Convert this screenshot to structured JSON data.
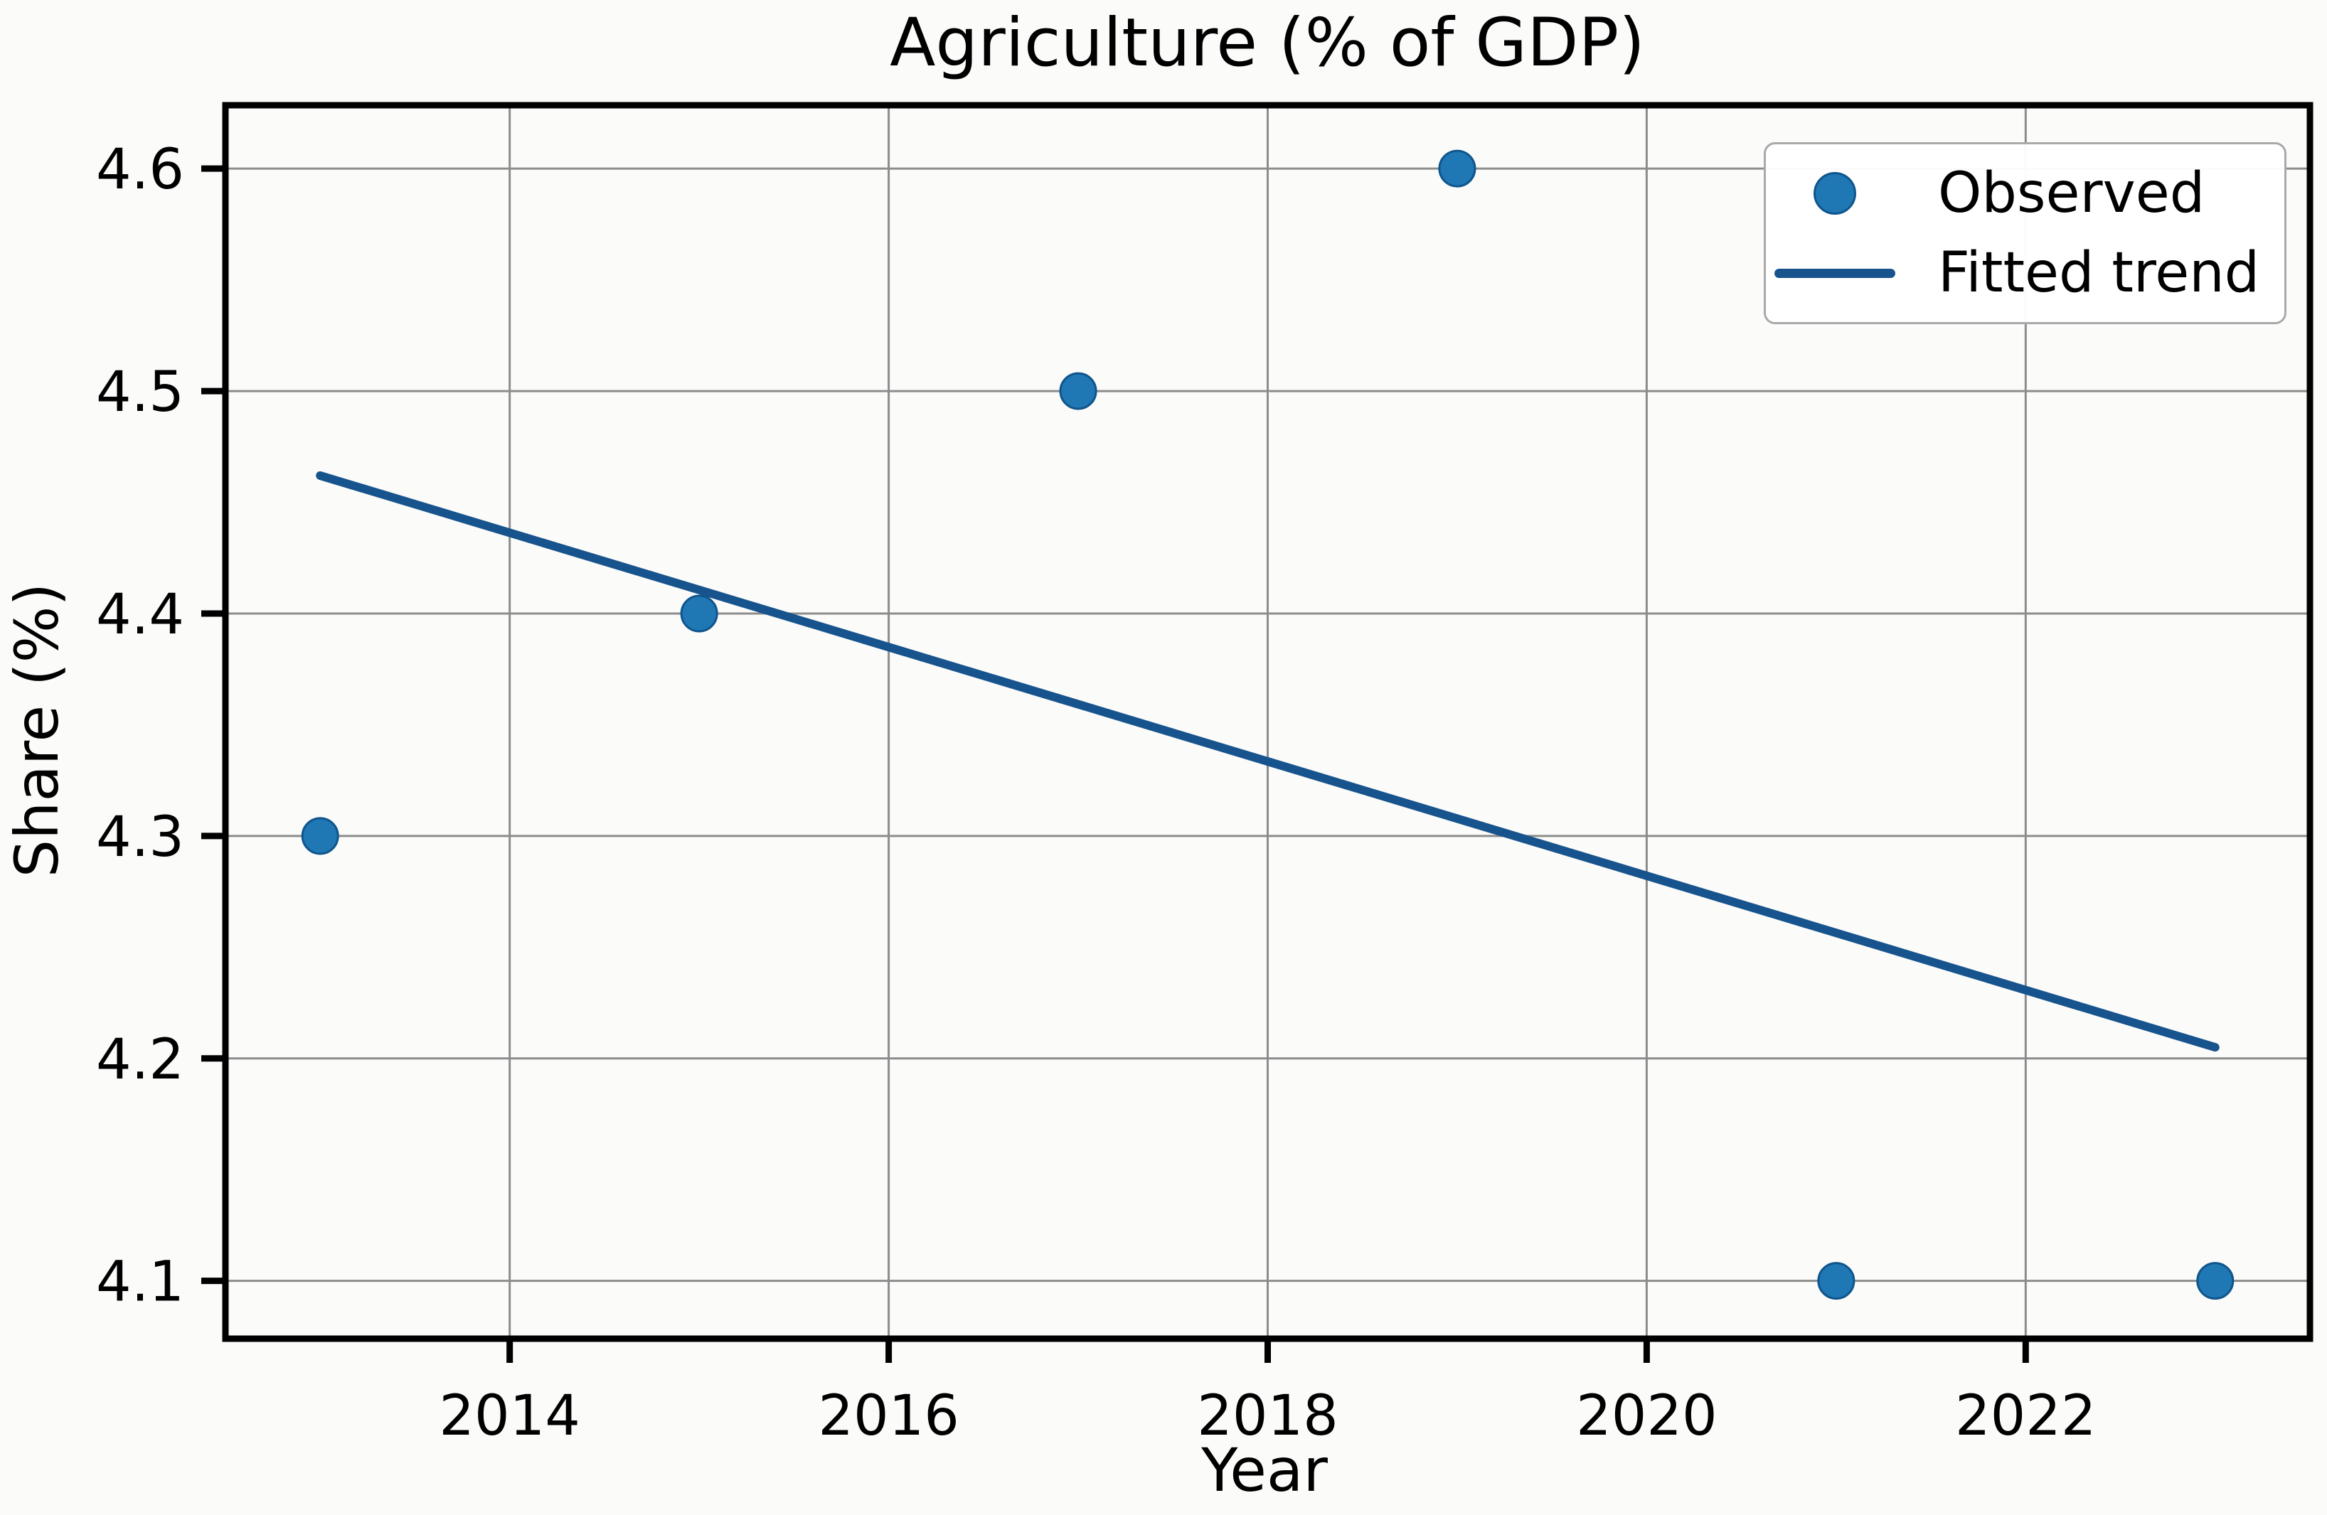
{
  "figure": {
    "title": "Agriculture (% of GDP)",
    "xlabel": "Year",
    "ylabel": "Share (%)"
  },
  "colors": {
    "observed_fill": "#1f77b4",
    "observed_edge": "#0f558c",
    "trend_line": "#17538c",
    "grid": "#8c8c8c",
    "spine": "#000000",
    "background": "#fbfbfa",
    "legend_border": "#a9a9a9",
    "text": "#000000"
  },
  "chart_data": {
    "type": "scatter",
    "title": "Agriculture (% of GDP)",
    "xlabel": "Year",
    "ylabel": "Share (%)",
    "x_ticks": [
      2014,
      2016,
      2018,
      2020,
      2022
    ],
    "y_ticks": [
      4.1,
      4.2,
      4.3,
      4.4,
      4.5,
      4.6
    ],
    "xlim": [
      2012.5,
      2023.5
    ],
    "ylim": [
      4.074,
      4.6285
    ],
    "grid": true,
    "legend_position": "upper right",
    "series": [
      {
        "name": "Observed",
        "type": "scatter",
        "color": "#1f77b4",
        "x": [
          2013,
          2015,
          2017,
          2019,
          2021,
          2023
        ],
        "y": [
          4.3,
          4.4,
          4.5,
          4.6,
          4.1,
          4.1
        ]
      },
      {
        "name": "Fitted trend",
        "type": "line",
        "color": "#17538c",
        "x": [
          2013,
          2023
        ],
        "y": [
          4.462,
          4.205
        ]
      }
    ]
  }
}
